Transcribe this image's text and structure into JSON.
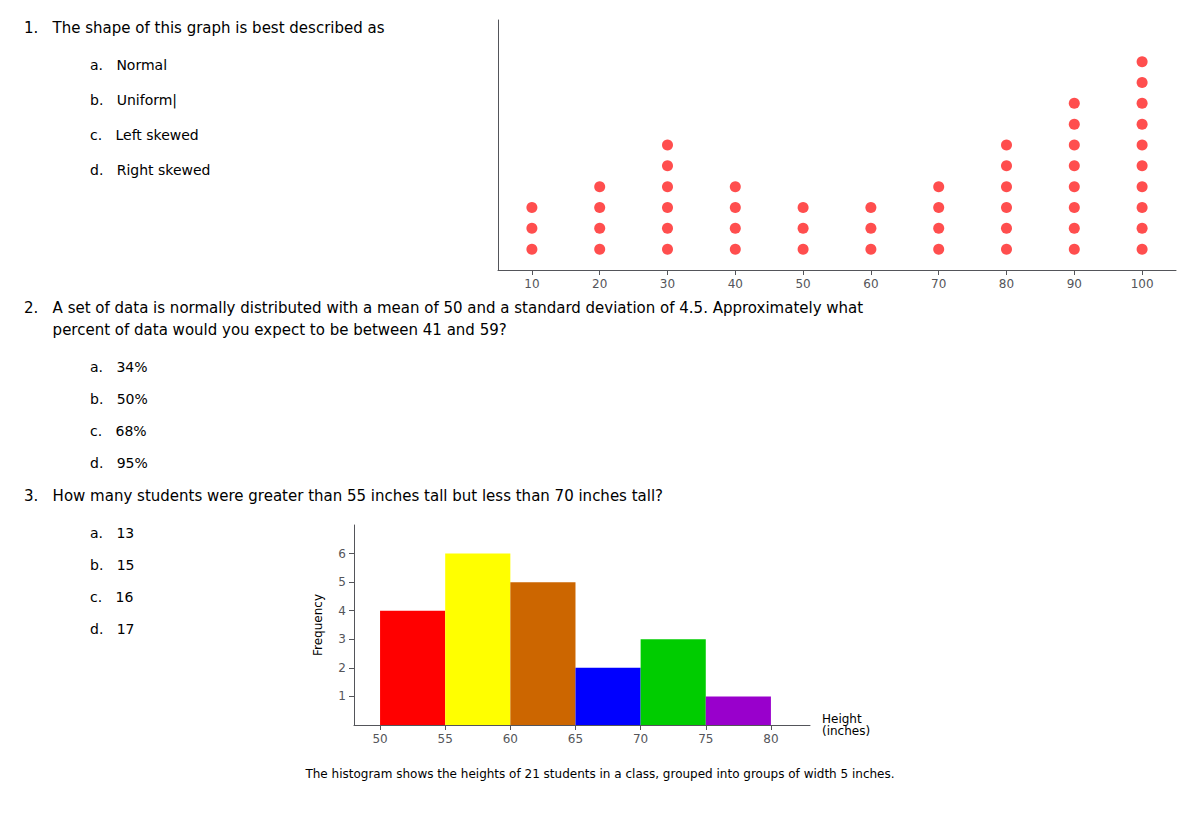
{
  "chart_data": [
    {
      "type": "dot",
      "annotations": [
        {
          "question": [
            "1.   The shape of this graph is best described as"
          ],
          "options": [
            "a.   Normal",
            "b.   Uniform|",
            "c.   Left skewed",
            "d.   Right skewed"
          ]
        }
      ],
      "x": [
        10,
        20,
        30,
        40,
        50,
        60,
        70,
        80,
        90,
        100
      ],
      "values": [
        3,
        4,
        6,
        4,
        3,
        3,
        4,
        6,
        8,
        10
      ],
      "color": "#ff2222",
      "xlim": [
        5,
        105
      ],
      "xticks": [
        10,
        20,
        30,
        40,
        50,
        60,
        70,
        80,
        90,
        100
      ],
      "ylim": [
        0,
        12
      ],
      "tick_labels": "x",
      "grid": false
    },
    {
      "type": "histogram",
      "title": "The histogram shows the heights of 21 students in a class, grouped into groups of width 5 inches.",
      "annotations": [
        {
          "question": [
            "2.   A set of data is normally distributed with a mean of 50 and a standard deviation of 4.5. Approximately what",
            "      percent of data would you expect to be between 41 and 59?"
          ],
          "options": [
            "a.   34%",
            "b.   50%",
            "c.   68%",
            "d.   95%"
          ]
        },
        {
          "question": [
            "3.   How many students were greater than 55 inches tall but less than 70 inches tall?"
          ],
          "options": [
            "a.   13",
            "b.   15",
            "c.   16",
            "d.   17"
          ]
        }
      ],
      "bins": [
        50,
        55,
        60,
        65,
        70,
        75,
        80
      ],
      "values": [
        4,
        6,
        5,
        2,
        3,
        1
      ],
      "colors": [
        "#ff0000",
        "#ffff00",
        "#cc6600",
        "#0000ff",
        "#00cc00",
        "#9900cc"
      ],
      "xlabel": "Height\n(inches)",
      "ylabel": "Frequency",
      "xlim": [
        48,
        83
      ],
      "xticks": [
        50,
        55,
        60,
        65,
        70,
        75,
        80
      ],
      "ylim": [
        0,
        7
      ],
      "yticks": [
        1,
        2,
        3,
        4,
        5,
        6
      ],
      "grid": false
    }
  ]
}
